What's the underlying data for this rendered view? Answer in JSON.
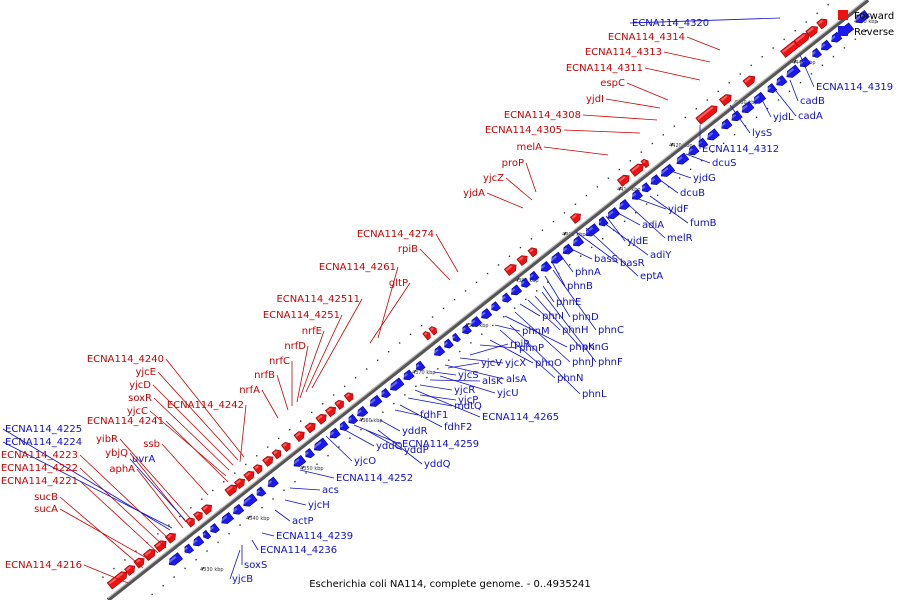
{
  "title": "Escherichia coli NA114, complete genome. - 0..4935241",
  "colors": {
    "forward": "#ee1111",
    "reverse": "#1a1aee",
    "backbone": "#777777"
  },
  "legend": [
    {
      "label": "Forward",
      "strand": "forward"
    },
    {
      "label": "Reverse",
      "strand": "reverse"
    }
  ],
  "ticks": [
    "4330 kbp",
    "4340 kbp",
    "4350 kbp",
    "4360 kbp",
    "4370 kbp",
    "4380 kbp",
    "4390 kbp",
    "4400 kbp",
    "4410 kbp",
    "4420 kbp",
    "4430 kbp",
    "4440 kbp",
    "4450 kbp"
  ],
  "forward_genes": [
    "ECNA114_4216",
    "sucA",
    "sucB",
    "ECNA114_4221",
    "ECNA114_4222",
    "ECNA114_4223",
    "aphA",
    "ybjQ",
    "yibR",
    "ssb",
    "ECNA114_4241",
    "yjcC",
    "soxR",
    "ECNA114_4242",
    "yjcD",
    "yjcE",
    "ECNA114_4240",
    "nrfA",
    "nrfB",
    "nrfC",
    "nrfD",
    "nrfE",
    "ECNA114_4251",
    "ECNA114_42511",
    "gltP",
    "ECNA114_4261",
    "rpiB",
    "ECNA114_4274",
    "yjdA",
    "yjcZ",
    "proP",
    "melA",
    "ECNA114_4305",
    "ECNA114_4308",
    "yjdI",
    "espC",
    "ECNA114_4311",
    "ECNA114_4313",
    "ECNA114_4314"
  ],
  "reverse_genes": [
    "ECNA114_4225",
    "ECNA114_4224",
    "uvrA",
    "yjcB",
    "soxS",
    "ECNA114_4236",
    "ECNA114_4239",
    "actP",
    "yjcH",
    "acs",
    "ECNA114_4252",
    "yjcO",
    "yddO",
    "ECNA114_4259",
    "yddP",
    "yddQ",
    "yddR",
    "fdhF1",
    "fdhF2",
    "yjcP",
    "mdtQ",
    "ECNA114_4265",
    "yjcR",
    "alsK",
    "yjcU",
    "yjcS",
    "alsA",
    "yjcV",
    "yjcX",
    "rpiR",
    "phnP",
    "phnO",
    "phnN",
    "phnL",
    "phnM",
    "phnK",
    "phnJ",
    "phnI",
    "phnH",
    "phnG",
    "phnF",
    "phnE",
    "phnD",
    "phnC",
    "phnB",
    "phnA",
    "basS",
    "basR",
    "eptA",
    "adiY",
    "yjdE",
    "adiA",
    "melR",
    "yjdF",
    "fumB",
    "dcuB",
    "yjdG",
    "dcuS",
    "ECNA114_4312",
    "lysS",
    "yjdL",
    "cadA",
    "cadB",
    "ECNA114_4319",
    "ECNA114_4320"
  ]
}
